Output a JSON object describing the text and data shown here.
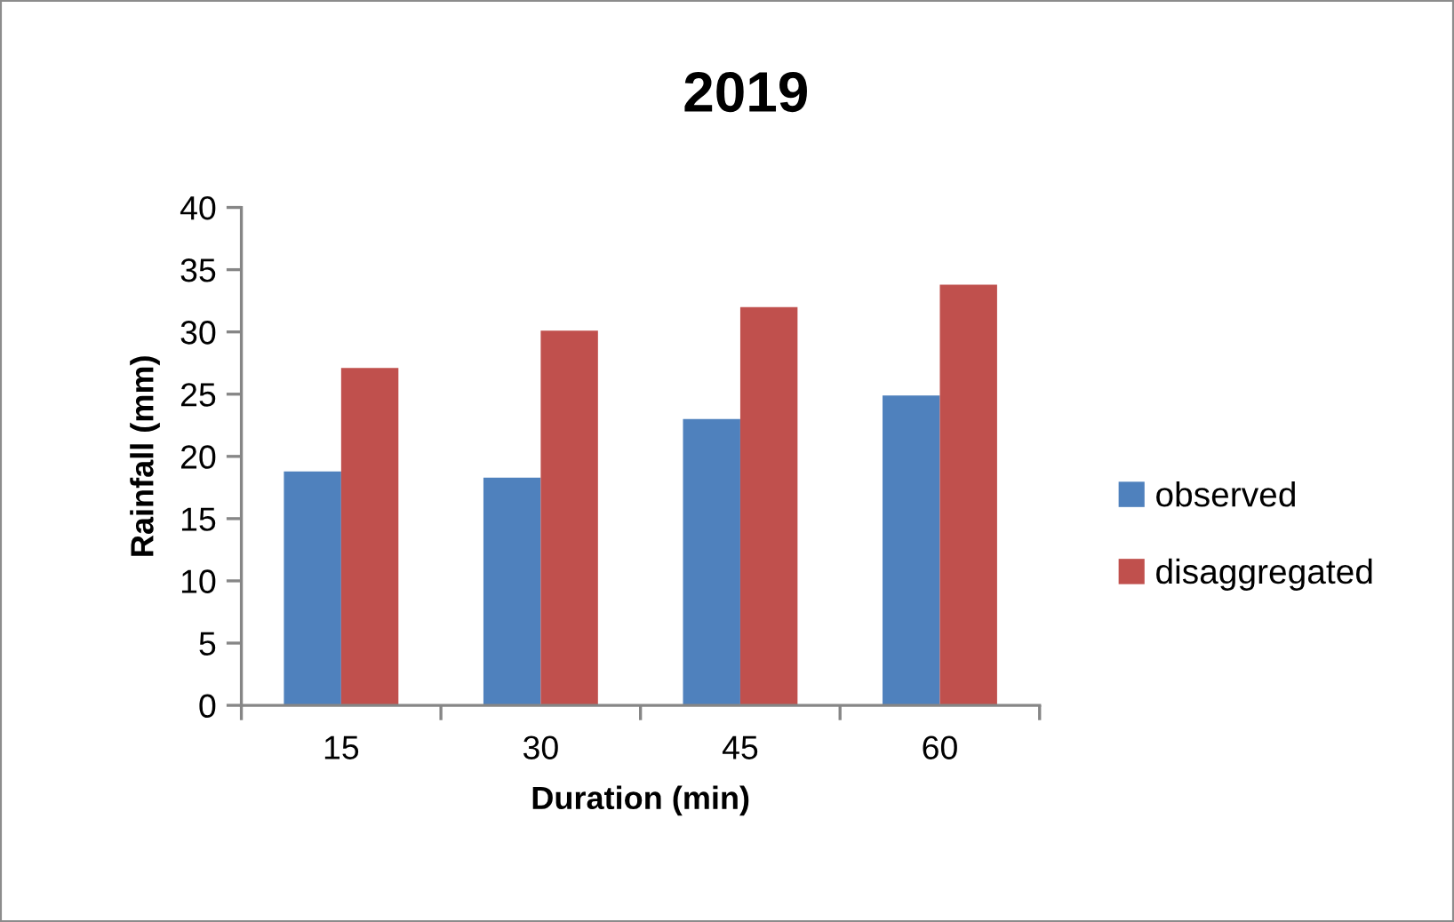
{
  "chart_data": {
    "type": "bar",
    "title": "2019",
    "xlabel": "Duration (min)",
    "ylabel": "Rainfall (mm)",
    "categories": [
      "15",
      "30",
      "45",
      "60"
    ],
    "series": [
      {
        "name": "observed",
        "color": "#4f81bd",
        "values": [
          18.8,
          18.3,
          23.0,
          24.9
        ]
      },
      {
        "name": "disaggregated",
        "color": "#c0504d",
        "values": [
          27.1,
          30.1,
          32.0,
          33.8
        ]
      }
    ],
    "ylim": [
      0,
      40
    ],
    "yticks": [
      0,
      5,
      10,
      15,
      20,
      25,
      30,
      35,
      40
    ],
    "grid": false,
    "legend": "right"
  }
}
